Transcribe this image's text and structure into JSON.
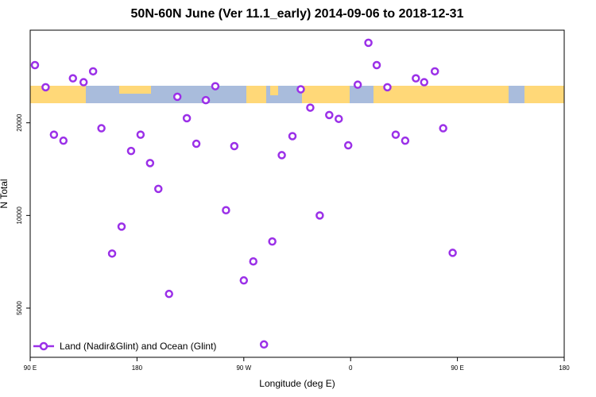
{
  "chart_data": {
    "type": "scatter",
    "title": "50N-60N June (Ver 11.1_early)   2014-09-06 to 2018-12-31",
    "xlabel": "Longitude (deg E)",
    "ylabel": "N Total",
    "xlim": [
      90,
      540
    ],
    "xticks": [
      {
        "value": 90,
        "label": "90 E"
      },
      {
        "value": 180,
        "label": "180"
      },
      {
        "value": 270,
        "label": "90 W"
      },
      {
        "value": 360,
        "label": "0"
      },
      {
        "value": 450,
        "label": "90 E"
      },
      {
        "value": 540,
        "label": "180"
      }
    ],
    "ylim": [
      3460,
      40000
    ],
    "yticks": [
      5000,
      10000,
      20000
    ],
    "log_y": true,
    "legend": "lower left",
    "series": [
      {
        "name": "Land (Nadir&Glint) and Ocean (Glint)",
        "color": "#9b30e8",
        "x": [
          94,
          103,
          110,
          118,
          126,
          135,
          143,
          150,
          159,
          167,
          175,
          183,
          191,
          198,
          207,
          214,
          222,
          230,
          238,
          246,
          255,
          262,
          270,
          278,
          287,
          294,
          302,
          311,
          318,
          326,
          334,
          342,
          350,
          358,
          366,
          375,
          382,
          391,
          398,
          406,
          415,
          422,
          431,
          438,
          446
        ],
        "values": [
          30800,
          26100,
          18300,
          17500,
          27900,
          27100,
          29400,
          19200,
          7520,
          9200,
          16200,
          18300,
          14800,
          12200,
          5560,
          24300,
          20700,
          17100,
          23700,
          26300,
          10400,
          16800,
          6150,
          7090,
          3810,
          8230,
          15700,
          18100,
          25700,
          22400,
          10000,
          21200,
          20600,
          16900,
          26600,
          36400,
          30800,
          26100,
          18300,
          17500,
          27900,
          27100,
          29400,
          19200,
          7560
        ]
      }
    ]
  }
}
